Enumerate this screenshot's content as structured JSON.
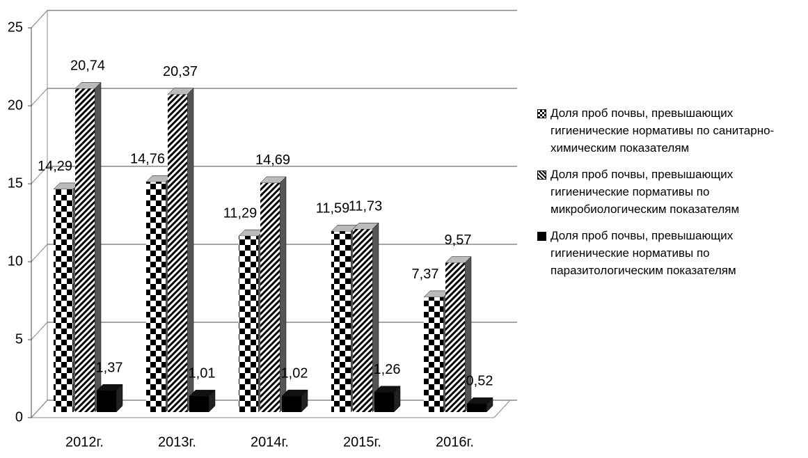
{
  "chart_data": {
    "type": "bar3d",
    "categories": [
      "2012г.",
      "2013г.",
      "2014г.",
      "2015г.",
      "2016г."
    ],
    "series": [
      {
        "name": "Доля проб почвы, превышающих гигиенические нормативы по санитарно-химическим показателям",
        "color": "#000000",
        "pattern": "checker",
        "values": [
          14.29,
          14.76,
          11.29,
          11.59,
          7.37
        ],
        "value_labels": [
          "14,29",
          "14,76",
          "11,29",
          "11,59",
          "7,37"
        ]
      },
      {
        "name": "Доля проб почвы, превышающих гигиенические пормативы по микробиологическим показателям",
        "color": "#000000",
        "pattern": "stripes",
        "values": [
          20.74,
          20.37,
          14.69,
          11.73,
          9.57
        ],
        "value_labels": [
          "20,74",
          "20,37",
          "14,69",
          "11,73",
          "9,57"
        ]
      },
      {
        "name": "Доля проб почвы, превышающих гигиенические нормативы по паразитологическим показателям",
        "color": "#000000",
        "pattern": "solid",
        "values": [
          1.37,
          1.01,
          1.02,
          1.26,
          0.52
        ],
        "value_labels": [
          "1,37",
          "1,01",
          "1,02",
          "1,26",
          "0,52"
        ]
      }
    ],
    "ylim": [
      0,
      25
    ],
    "yticks": [
      0,
      5,
      10,
      15,
      20,
      25
    ],
    "grid": true,
    "legend": "right"
  }
}
